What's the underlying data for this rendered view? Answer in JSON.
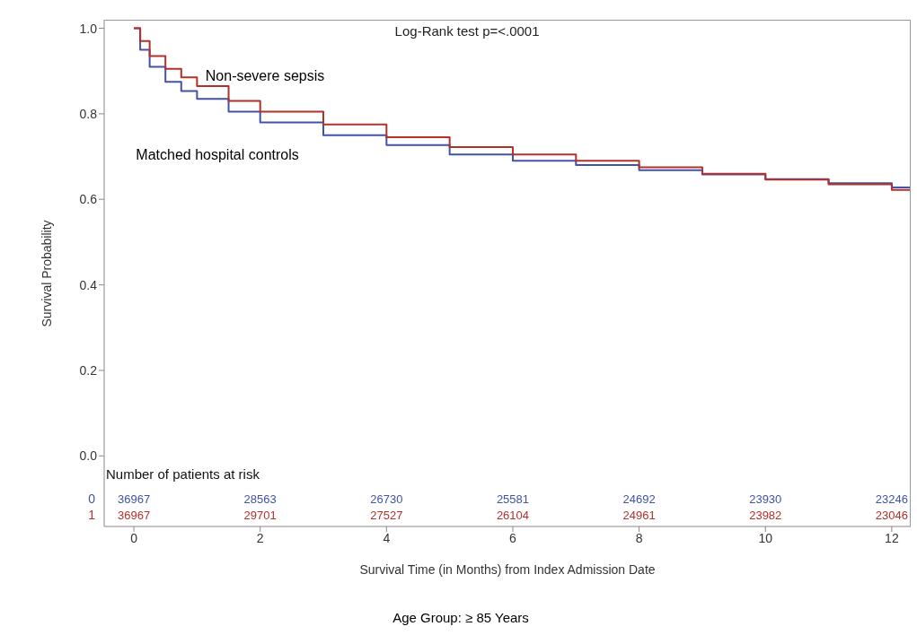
{
  "chart_data": {
    "type": "step",
    "xlabel": "Survival Time (in Months) from Index Admission Date",
    "ylabel": "Survival Probability",
    "xlim": [
      -0.47,
      12.3
    ],
    "xticks": [
      0,
      2,
      4,
      6,
      8,
      10,
      12
    ],
    "ylim": [
      -0.165,
      1.02
    ],
    "yticks": [
      {
        "value": 0,
        "label": "0.0"
      },
      0.2,
      0.4,
      0.6,
      0.8,
      {
        "value": 1,
        "label": "1.0"
      }
    ],
    "grid": false,
    "legend": false,
    "marker": "none",
    "line_style": "solid",
    "series": [
      {
        "name": "Matched hospital controls",
        "color": "#4252a8",
        "x": [
          0,
          0.1,
          0.25,
          0.5,
          0.75,
          1,
          1.5,
          2,
          3,
          4,
          5,
          6,
          7,
          8,
          9,
          10,
          11,
          12,
          12.3
        ],
        "values": [
          1.0,
          0.95,
          0.91,
          0.875,
          0.853,
          0.835,
          0.805,
          0.78,
          0.75,
          0.727,
          0.705,
          0.69,
          0.68,
          0.668,
          0.658,
          0.647,
          0.638,
          0.628,
          0.625
        ]
      },
      {
        "name": "Non-severe sepsis",
        "color": "#b3302b",
        "x": [
          0,
          0.1,
          0.25,
          0.5,
          0.75,
          1,
          1.5,
          2,
          3,
          4,
          5,
          6,
          7,
          8,
          9,
          10,
          11,
          12,
          12.3
        ],
        "values": [
          1.0,
          0.97,
          0.935,
          0.905,
          0.885,
          0.865,
          0.83,
          0.805,
          0.775,
          0.745,
          0.722,
          0.705,
          0.69,
          0.675,
          0.66,
          0.646,
          0.635,
          0.622,
          0.617
        ]
      }
    ],
    "annotations": [
      "Log-Rank test p=<.0001",
      "Number of patients at risk",
      "0",
      "1",
      "Age Group: ≥ 85 Years",
      "36967",
      "28563",
      "26730",
      "25581",
      "24692",
      "23930",
      "23246",
      "36967",
      "29701",
      "27527",
      "26104",
      "24961",
      "23982",
      "23046"
    ]
  }
}
